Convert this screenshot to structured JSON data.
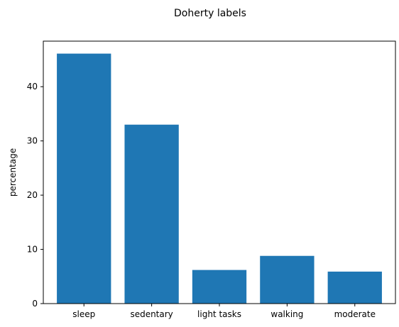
{
  "chart_data": {
    "type": "bar",
    "title": "Doherty labels",
    "xlabel": "",
    "ylabel": "percentage",
    "categories": [
      "sleep",
      "sedentary",
      "light tasks",
      "walking",
      "moderate"
    ],
    "values": [
      46.1,
      33.0,
      6.2,
      8.8,
      5.9
    ],
    "ylim": [
      0,
      48.4
    ],
    "yticks": [
      0,
      10,
      20,
      30,
      40
    ],
    "bar_color": "#1f77b4",
    "grid": false,
    "legend": "none"
  }
}
